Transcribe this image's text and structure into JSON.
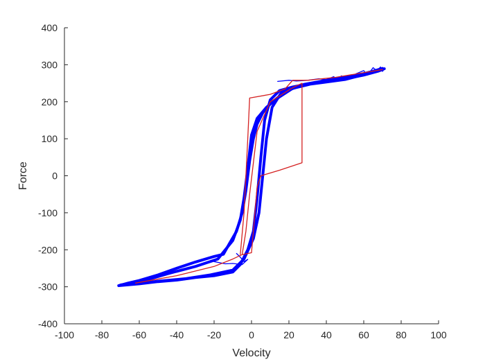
{
  "chart_data": {
    "type": "line",
    "xlabel": "Velocity",
    "ylabel": "Force",
    "xlim": [
      -100,
      100
    ],
    "ylim": [
      -400,
      400
    ],
    "xticks": [
      -100,
      -80,
      -60,
      -40,
      -20,
      0,
      20,
      40,
      60,
      80,
      100
    ],
    "yticks": [
      -400,
      -300,
      -200,
      -100,
      0,
      100,
      200,
      300,
      400
    ],
    "grid": false,
    "series": [
      {
        "color": "#0000ff",
        "line_width": "thick",
        "points": [
          [
            -71,
            -297
          ],
          [
            -66,
            -290
          ],
          [
            -60,
            -283
          ],
          [
            -50,
            -268
          ],
          [
            -40,
            -250
          ],
          [
            -30,
            -233
          ],
          [
            -20,
            -218
          ],
          [
            -15,
            -212
          ],
          [
            -12,
            -185
          ],
          [
            -8,
            -150
          ],
          [
            -5,
            -100
          ],
          [
            -3,
            -40
          ],
          [
            -1,
            40
          ],
          [
            1,
            100
          ],
          [
            3,
            140
          ],
          [
            6,
            170
          ],
          [
            10,
            195
          ],
          [
            15,
            215
          ],
          [
            20,
            232
          ],
          [
            28,
            247
          ],
          [
            40,
            258
          ],
          [
            50,
            266
          ],
          [
            60,
            276
          ],
          [
            68,
            286
          ],
          [
            71,
            289
          ],
          [
            68,
            283
          ],
          [
            60,
            272
          ],
          [
            50,
            262
          ],
          [
            40,
            254
          ],
          [
            30,
            248
          ],
          [
            22,
            240
          ],
          [
            15,
            230
          ],
          [
            10,
            205
          ],
          [
            7,
            150
          ],
          [
            5,
            50
          ],
          [
            3,
            -60
          ],
          [
            1,
            -150
          ],
          [
            -2,
            -200
          ],
          [
            -6,
            -240
          ],
          [
            -10,
            -260
          ],
          [
            -20,
            -270
          ],
          [
            -30,
            -275
          ],
          [
            -40,
            -282
          ],
          [
            -50,
            -286
          ],
          [
            -60,
            -292
          ],
          [
            -71,
            -297
          ]
        ]
      },
      {
        "color": "#0000ff",
        "line_width": "thick",
        "points": [
          [
            -70,
            -295
          ],
          [
            -60,
            -287
          ],
          [
            -45,
            -265
          ],
          [
            -30,
            -245
          ],
          [
            -18,
            -225
          ],
          [
            -10,
            -175
          ],
          [
            -6,
            -120
          ],
          [
            -4,
            -60
          ],
          [
            -2,
            20
          ],
          [
            0,
            110
          ],
          [
            3,
            155
          ],
          [
            8,
            185
          ],
          [
            14,
            210
          ],
          [
            22,
            236
          ],
          [
            35,
            252
          ],
          [
            48,
            264
          ],
          [
            62,
            278
          ],
          [
            70,
            290
          ],
          [
            62,
            276
          ],
          [
            50,
            260
          ],
          [
            38,
            252
          ],
          [
            26,
            244
          ],
          [
            16,
            225
          ],
          [
            11,
            185
          ],
          [
            8,
            100
          ],
          [
            6,
            0
          ],
          [
            4,
            -100
          ],
          [
            1,
            -170
          ],
          [
            -4,
            -225
          ],
          [
            -10,
            -255
          ],
          [
            -22,
            -268
          ],
          [
            -35,
            -278
          ],
          [
            -50,
            -285
          ],
          [
            -62,
            -292
          ],
          [
            -70,
            -295
          ]
        ]
      },
      {
        "color": "#0000ff",
        "line_width": "thin",
        "points": [
          [
            14,
            255
          ],
          [
            20,
            258
          ],
          [
            24,
            256
          ],
          [
            30,
            258
          ],
          [
            36,
            262
          ],
          [
            40,
            260
          ],
          [
            44,
            268
          ],
          [
            46,
            256
          ],
          [
            48,
            270
          ],
          [
            52,
            262
          ],
          [
            56,
            276
          ],
          [
            60,
            284
          ],
          [
            62,
            272
          ],
          [
            65,
            292
          ],
          [
            67,
            284
          ],
          [
            69,
            294
          ],
          [
            70,
            282
          ],
          [
            71,
            288
          ]
        ]
      },
      {
        "color": "#0000ff",
        "line_width": "thin",
        "points": [
          [
            -8,
            -210
          ],
          [
            -6,
            -220
          ],
          [
            -4,
            -232
          ],
          [
            -2,
            -226
          ],
          [
            -5,
            -240
          ],
          [
            -10,
            -237
          ],
          [
            -14,
            -238
          ],
          [
            -20,
            -232
          ]
        ]
      },
      {
        "color": "#d42020",
        "line_width": "thin",
        "points": [
          [
            -62,
            -290
          ],
          [
            -40,
            -270
          ],
          [
            -20,
            -245
          ],
          [
            -10,
            -225
          ],
          [
            -5,
            -213
          ],
          [
            0,
            -208
          ],
          [
            1,
            -150
          ],
          [
            3,
            -30
          ],
          [
            5,
            0
          ],
          [
            15,
            15
          ],
          [
            27,
            35
          ],
          [
            27,
            250
          ],
          [
            22,
            238
          ],
          [
            10,
            200
          ],
          [
            3,
            120
          ],
          [
            -1,
            -50
          ],
          [
            -3,
            -150
          ],
          [
            -5,
            -213
          ]
        ]
      },
      {
        "color": "#d42020",
        "line_width": "thin",
        "points": [
          [
            -6,
            -213
          ],
          [
            -4,
            -100
          ],
          [
            -3,
            0
          ],
          [
            -2,
            100
          ],
          [
            -1,
            210
          ],
          [
            10,
            220
          ],
          [
            18,
            235
          ],
          [
            22,
            258
          ],
          [
            30,
            258
          ],
          [
            45,
            266
          ],
          [
            70,
            287
          ]
        ]
      }
    ]
  }
}
